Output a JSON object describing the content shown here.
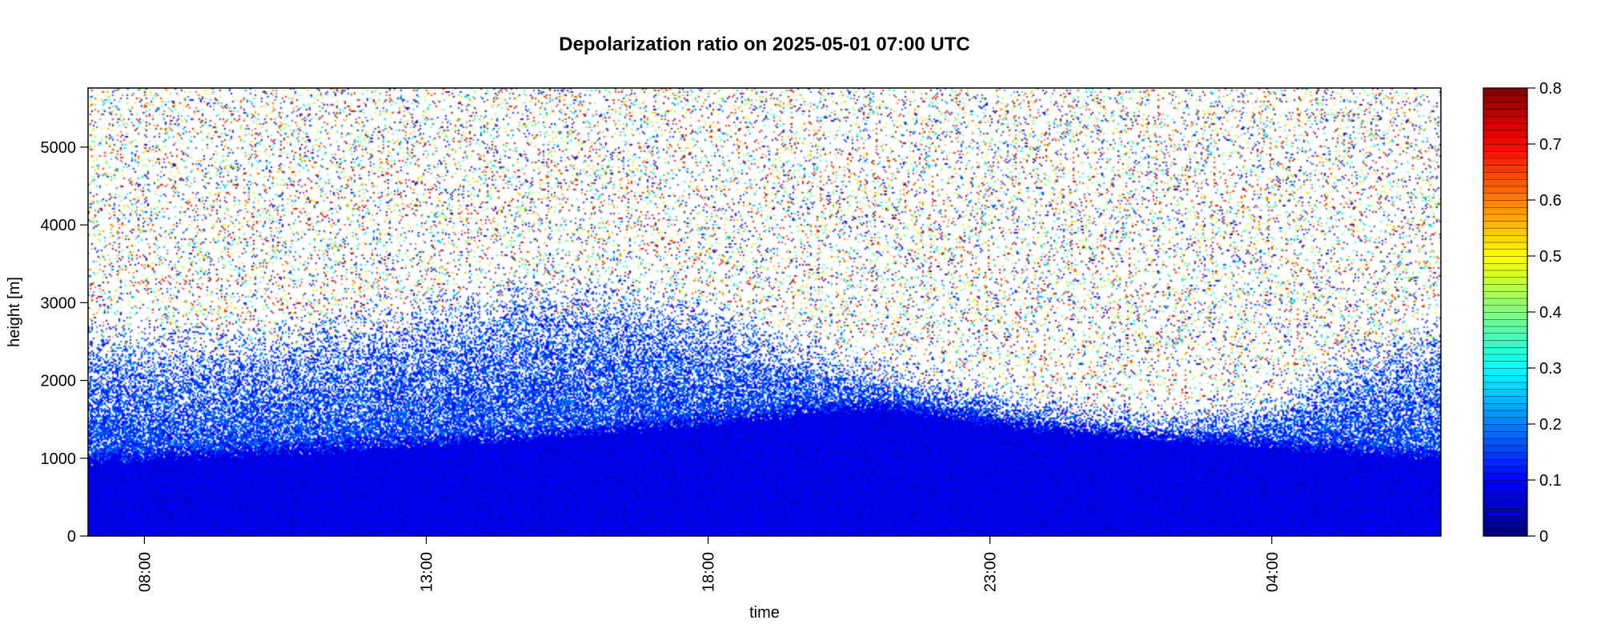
{
  "chart_data": {
    "type": "heatmap",
    "title": "Depolarization ratio on 2025-05-01 07:00 UTC",
    "xlabel": "time",
    "ylabel": "height [m]",
    "x_tick_labels": [
      "08:00",
      "13:00",
      "18:00",
      "23:00",
      "04:00"
    ],
    "x_tick_hours": [
      8,
      13,
      18,
      23,
      28
    ],
    "xlim_hours": [
      7.0,
      31.0
    ],
    "y_ticks": [
      0,
      1000,
      2000,
      3000,
      4000,
      5000
    ],
    "ylim": [
      0,
      5760
    ],
    "colorbar": {
      "min": 0,
      "max": 0.8,
      "ticks": [
        0,
        0.1,
        0.2,
        0.3,
        0.4,
        0.5,
        0.6,
        0.7,
        0.8
      ],
      "tick_labels": [
        "0",
        "0.1",
        "0.2",
        "0.3",
        "0.4",
        "0.5",
        "0.6",
        "0.7",
        "0.8"
      ],
      "colormap": [
        "#00007f",
        "#0000ff",
        "#007fff",
        "#00ffff",
        "#7fff7f",
        "#ffff00",
        "#ff7f00",
        "#ff0000",
        "#7f0000"
      ]
    },
    "signal_top_height": [
      {
        "time_h": 7.0,
        "height_m": 2550
      },
      {
        "time_h": 9.0,
        "height_m": 2450
      },
      {
        "time_h": 11.0,
        "height_m": 2600
      },
      {
        "time_h": 13.0,
        "height_m": 2850
      },
      {
        "time_h": 15.0,
        "height_m": 3100
      },
      {
        "time_h": 17.0,
        "height_m": 3050
      },
      {
        "time_h": 18.5,
        "height_m": 2700
      },
      {
        "time_h": 20.0,
        "height_m": 2300
      },
      {
        "time_h": 22.0,
        "height_m": 2000
      },
      {
        "time_h": 24.0,
        "height_m": 1700
      },
      {
        "time_h": 26.0,
        "height_m": 1550
      },
      {
        "time_h": 28.0,
        "height_m": 1700
      },
      {
        "time_h": 29.5,
        "height_m": 2300
      },
      {
        "time_h": 31.0,
        "height_m": 2600
      }
    ],
    "dense_layer_top_height": [
      {
        "time_h": 7.0,
        "height_m": 1000
      },
      {
        "time_h": 11.0,
        "height_m": 1150
      },
      {
        "time_h": 15.0,
        "height_m": 1300
      },
      {
        "time_h": 18.0,
        "height_m": 1500
      },
      {
        "time_h": 21.0,
        "height_m": 1700
      },
      {
        "time_h": 24.0,
        "height_m": 1400
      },
      {
        "time_h": 27.0,
        "height_m": 1250
      },
      {
        "time_h": 31.0,
        "height_m": 1050
      }
    ],
    "layer_depolarization": {
      "below_dense_top": 0.08,
      "mixing_layer": 0.15,
      "above_signal": "noise"
    },
    "grid": false,
    "legend": "colorbar-right"
  }
}
